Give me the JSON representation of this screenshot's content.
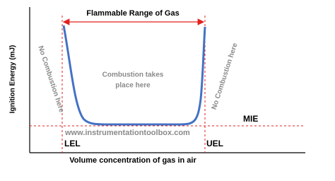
{
  "title": "Flammable Range of Gas",
  "y_axis_label": "Ignition Energy (mJ)",
  "x_axis_label": "Volume concentration of gas in air",
  "left_region": "No Combustion here",
  "right_region": "No Combustion here",
  "center_region": [
    "Combustion takes",
    "place here"
  ],
  "line_labels": {
    "mie": "MIE",
    "lel": "LEL",
    "uel": "UEL"
  },
  "watermark": "www.instrumentationtoolbox.com"
}
